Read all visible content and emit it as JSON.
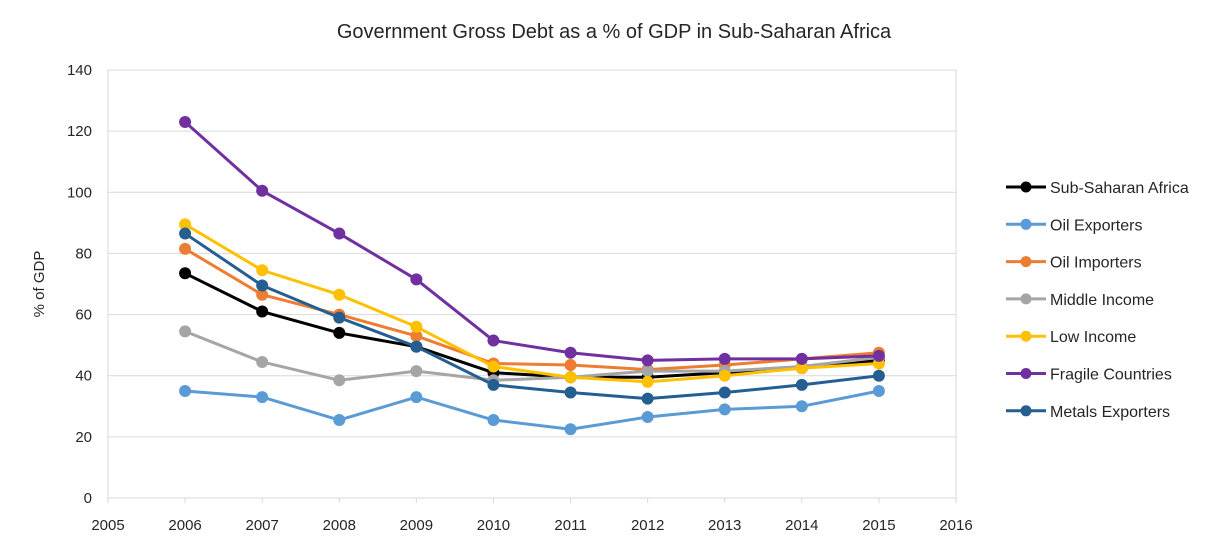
{
  "chart_data": {
    "type": "line",
    "title": "Government Gross Debt as a % of GDP in Sub-Saharan Africa",
    "xlabel": "",
    "ylabel": "% of GDP",
    "xlim": [
      2005,
      2016
    ],
    "ylim": [
      0,
      140
    ],
    "x_ticks": [
      "2005",
      "2006",
      "2007",
      "2008",
      "2009",
      "2010",
      "2011",
      "2012",
      "2013",
      "2014",
      "2015",
      "2016"
    ],
    "y_ticks": [
      "0",
      "20",
      "40",
      "60",
      "80",
      "100",
      "120",
      "140"
    ],
    "grid": "horizontal",
    "legend_position": "right",
    "x": [
      2006,
      2007,
      2008,
      2009,
      2010,
      2011,
      2012,
      2013,
      2014,
      2015
    ],
    "series": [
      {
        "name": "Sub-Saharan Africa",
        "color": "#000000",
        "values": [
          73.5,
          61,
          54,
          49.5,
          41,
          39.5,
          39.5,
          41,
          42.5,
          45
        ]
      },
      {
        "name": "Oil Exporters",
        "color": "#5b9bd5",
        "values": [
          35,
          33,
          25.5,
          33,
          25.5,
          22.5,
          26.5,
          29,
          30,
          35
        ]
      },
      {
        "name": "Oil Importers",
        "color": "#ed7d31",
        "values": [
          81.5,
          66.5,
          60,
          53,
          44,
          43.5,
          42,
          43.5,
          45.5,
          47.5
        ]
      },
      {
        "name": "Middle Income",
        "color": "#a5a5a5",
        "values": [
          54.5,
          44.5,
          38.5,
          41.5,
          38.5,
          39.5,
          41.5,
          41.5,
          43,
          46
        ]
      },
      {
        "name": "Low Income",
        "color": "#ffc000",
        "values": [
          89.5,
          74.5,
          66.5,
          56,
          43,
          39.5,
          38,
          40,
          42.5,
          44
        ]
      },
      {
        "name": "Fragile Countries",
        "color": "#7030a0",
        "values": [
          123,
          100.5,
          86.5,
          71.5,
          51.5,
          47.5,
          45,
          45.5,
          45.5,
          46.5
        ]
      },
      {
        "name": "Metals Exporters",
        "color": "#255e91",
        "values": [
          86.5,
          69.5,
          59,
          49.5,
          37,
          34.5,
          32.5,
          34.5,
          37,
          40
        ]
      }
    ]
  }
}
